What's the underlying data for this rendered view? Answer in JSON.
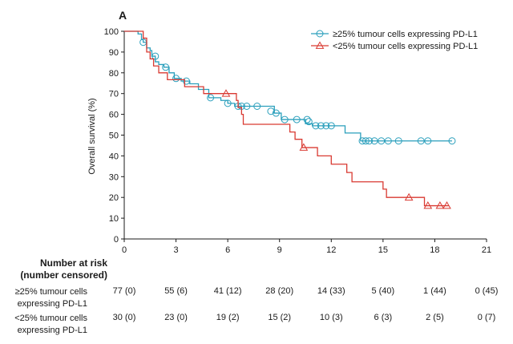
{
  "chart_data": {
    "type": "line",
    "panel_label": "A",
    "ylabel": "Overall survival (%)",
    "xlabel": "",
    "xlim": [
      0,
      21
    ],
    "ylim": [
      0,
      100
    ],
    "xticks": [
      0,
      3,
      6,
      9,
      12,
      15,
      18,
      21
    ],
    "yticks": [
      0,
      10,
      20,
      30,
      40,
      50,
      60,
      70,
      80,
      90,
      100
    ],
    "grid": false,
    "legend_position": "top-right",
    "series": [
      {
        "name": "≥25% tumour cells expressing PD-L1",
        "color": "#2a9fbc",
        "marker": "circle",
        "steps": [
          [
            0,
            100
          ],
          [
            0.8,
            98.7
          ],
          [
            1.0,
            96
          ],
          [
            1.1,
            94.7
          ],
          [
            1.3,
            92
          ],
          [
            1.5,
            90.7
          ],
          [
            1.6,
            88
          ],
          [
            1.8,
            85.3
          ],
          [
            2.0,
            84
          ],
          [
            2.3,
            82.7
          ],
          [
            2.6,
            80
          ],
          [
            2.9,
            77.3
          ],
          [
            3.3,
            76
          ],
          [
            3.8,
            74.7
          ],
          [
            4.3,
            72
          ],
          [
            4.9,
            68
          ],
          [
            5.6,
            66.7
          ],
          [
            6.0,
            65.3
          ],
          [
            6.4,
            63.9
          ],
          [
            8.7,
            60.6
          ],
          [
            9.1,
            57.5
          ],
          [
            10.5,
            55.5
          ],
          [
            10.9,
            54.5
          ],
          [
            12.8,
            51.0
          ],
          [
            13.7,
            47.2
          ],
          [
            19.0,
            47.2
          ]
        ],
        "censored": [
          [
            1.1,
            94.7
          ],
          [
            1.8,
            88
          ],
          [
            2.4,
            82.7
          ],
          [
            3.0,
            77.3
          ],
          [
            3.6,
            76
          ],
          [
            5.0,
            68
          ],
          [
            6.0,
            65.3
          ],
          [
            6.6,
            63.9
          ],
          [
            6.8,
            63.9
          ],
          [
            7.1,
            63.9
          ],
          [
            7.7,
            63.9
          ],
          [
            8.5,
            61.5
          ],
          [
            8.8,
            60.6
          ],
          [
            9.3,
            57.5
          ],
          [
            10.0,
            57.5
          ],
          [
            10.6,
            57.5
          ],
          [
            10.7,
            56.5
          ],
          [
            11.1,
            54.5
          ],
          [
            11.4,
            54.5
          ],
          [
            11.7,
            54.5
          ],
          [
            12.0,
            54.5
          ],
          [
            13.8,
            47.2
          ],
          [
            14.0,
            47.2
          ],
          [
            14.2,
            47.2
          ],
          [
            14.5,
            47.2
          ],
          [
            14.9,
            47.2
          ],
          [
            15.3,
            47.2
          ],
          [
            15.9,
            47.2
          ],
          [
            17.2,
            47.2
          ],
          [
            17.6,
            47.2
          ],
          [
            19.0,
            47.2
          ]
        ]
      },
      {
        "name": "<25% tumour cells expressing PD-L1",
        "color": "#d93a32",
        "marker": "triangle",
        "steps": [
          [
            0,
            100
          ],
          [
            1.1,
            96.7
          ],
          [
            1.3,
            90
          ],
          [
            1.5,
            86.7
          ],
          [
            1.7,
            83.3
          ],
          [
            2.0,
            80
          ],
          [
            2.5,
            76.7
          ],
          [
            3.5,
            73.3
          ],
          [
            4.6,
            70
          ],
          [
            6.5,
            66.7
          ],
          [
            6.6,
            63.3
          ],
          [
            6.8,
            60
          ],
          [
            6.9,
            55.2
          ],
          [
            9.6,
            51.5
          ],
          [
            9.9,
            48.0
          ],
          [
            10.3,
            44.0
          ],
          [
            11.2,
            40.0
          ],
          [
            12.0,
            36.0
          ],
          [
            12.9,
            32.0
          ],
          [
            13.2,
            27.5
          ],
          [
            15.0,
            24.0
          ],
          [
            15.2,
            20.0
          ],
          [
            17.4,
            16.0
          ],
          [
            18.8,
            16.0
          ]
        ],
        "censored": [
          [
            5.9,
            70
          ],
          [
            10.4,
            44.0
          ],
          [
            16.5,
            20.0
          ],
          [
            17.6,
            16.0
          ],
          [
            18.3,
            16.0
          ],
          [
            18.7,
            16.0
          ]
        ]
      }
    ],
    "risk_table": {
      "title_line1": "Number at risk",
      "title_line2": "(number censored)",
      "timepoints": [
        0,
        3,
        6,
        9,
        12,
        15,
        18,
        21
      ],
      "rows": [
        {
          "label_line1": "≥25% tumour cells",
          "label_line2": "expressing PD-L1",
          "values": [
            "77 (0)",
            "55 (6)",
            "41 (12)",
            "28 (20)",
            "14 (33)",
            "5 (40)",
            "1 (44)",
            "0 (45)"
          ]
        },
        {
          "label_line1": "<25% tumour cells",
          "label_line2": "expressing PD-L1",
          "values": [
            "30 (0)",
            "23 (0)",
            "19 (2)",
            "15 (2)",
            "10 (3)",
            "6 (3)",
            "2 (5)",
            "0 (7)"
          ]
        }
      ]
    }
  }
}
